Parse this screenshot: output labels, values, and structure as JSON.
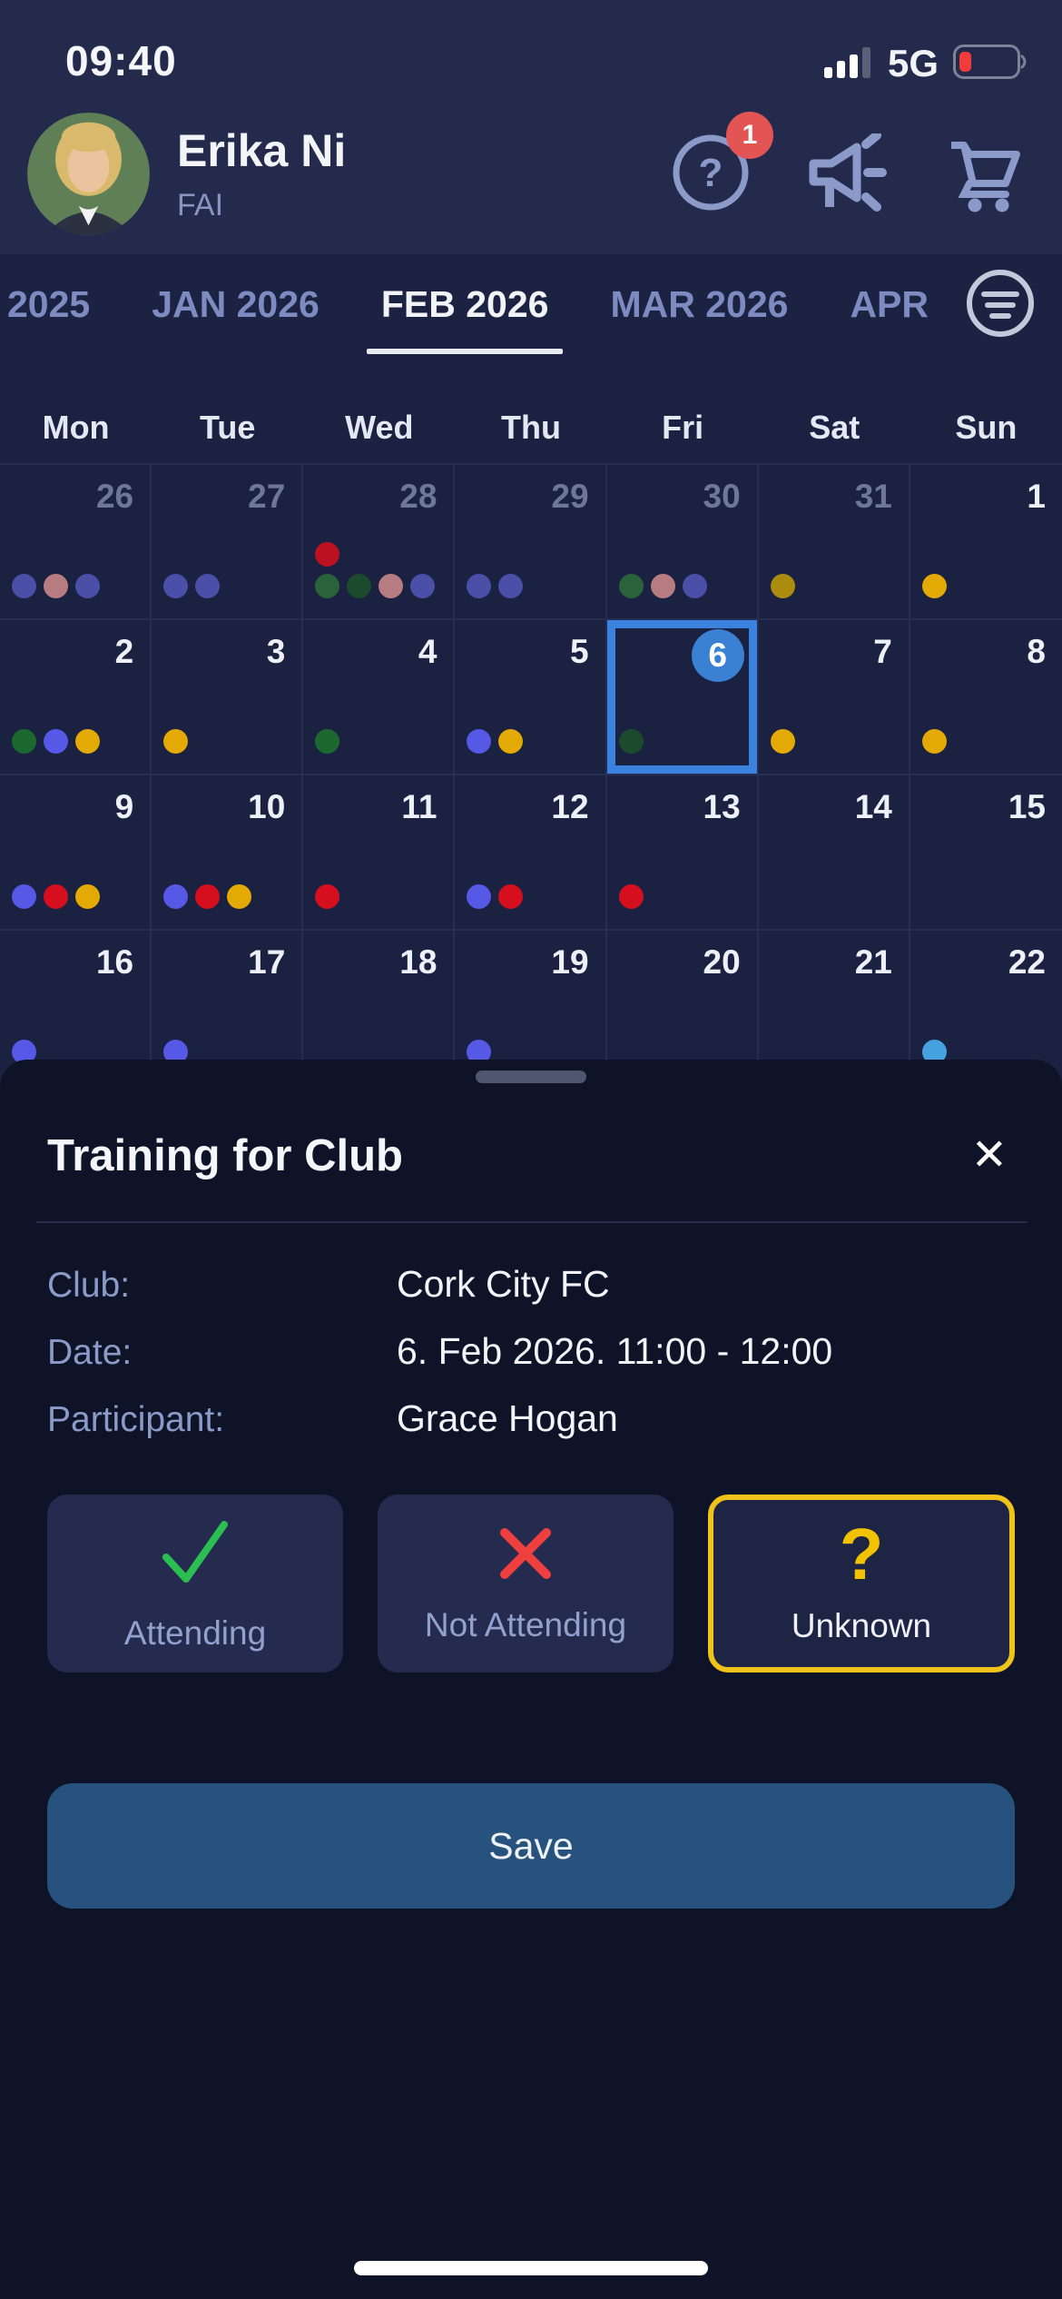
{
  "status_bar": {
    "time": "09:40",
    "network": "5G"
  },
  "header": {
    "name": "Erika Ni",
    "org": "FAI",
    "help_badge": "1"
  },
  "month_tabs": {
    "tabs": [
      {
        "label": "2025",
        "active": false
      },
      {
        "label": "JAN 2026",
        "active": false
      },
      {
        "label": "FEB 2026",
        "active": true
      },
      {
        "label": "MAR 2026",
        "active": false
      },
      {
        "label": "APR",
        "active": false
      }
    ]
  },
  "calendar": {
    "weekdays": [
      "Mon",
      "Tue",
      "Wed",
      "Thu",
      "Fri",
      "Sat",
      "Sun"
    ],
    "dot_colors": {
      "indigo_muted": "#4b4fa8",
      "rose": "#b77c82",
      "red_muted": "#bb1120",
      "red": "#d60f1e",
      "green": "#1c6930",
      "green_mid": "#2a633a",
      "green_dark": "#1c4a2c",
      "gold": "#e3a904",
      "gold_dark": "#ac8c0e",
      "violet": "#5658e6",
      "sky": "#45a1df"
    },
    "selection_color": "#3b82de",
    "weeks": [
      {
        "days": [
          {
            "num": "26",
            "muted": true,
            "dots": [
              "indigo_muted",
              "rose",
              "indigo_muted"
            ]
          },
          {
            "num": "27",
            "muted": true,
            "dots": [
              "indigo_muted",
              "indigo_muted"
            ]
          },
          {
            "num": "28",
            "muted": true,
            "dots_top": [
              "red_muted"
            ],
            "dots": [
              "green_mid",
              "green_dark",
              "rose",
              "indigo_muted"
            ]
          },
          {
            "num": "29",
            "muted": true,
            "dots": [
              "indigo_muted",
              "indigo_muted"
            ]
          },
          {
            "num": "30",
            "muted": true,
            "dots": [
              "green_mid",
              "rose",
              "indigo_muted"
            ]
          },
          {
            "num": "31",
            "muted": true,
            "dots": [
              "gold_dark"
            ]
          },
          {
            "num": "1",
            "muted": false,
            "dots": [
              "gold"
            ]
          }
        ]
      },
      {
        "days": [
          {
            "num": "2",
            "muted": false,
            "dots": [
              "green",
              "violet",
              "gold"
            ]
          },
          {
            "num": "3",
            "muted": false,
            "dots": [
              "gold"
            ]
          },
          {
            "num": "4",
            "muted": false,
            "dots": [
              "green"
            ]
          },
          {
            "num": "5",
            "muted": false,
            "dots": [
              "violet",
              "gold"
            ]
          },
          {
            "num": "6",
            "muted": false,
            "selected": true,
            "dots": [
              "green_dark"
            ]
          },
          {
            "num": "7",
            "muted": false,
            "dots": [
              "gold"
            ]
          },
          {
            "num": "8",
            "muted": false,
            "dots": [
              "gold"
            ]
          }
        ]
      },
      {
        "days": [
          {
            "num": "9",
            "muted": false,
            "dots": [
              "violet",
              "red",
              "gold"
            ]
          },
          {
            "num": "10",
            "muted": false,
            "dots": [
              "violet",
              "red",
              "gold"
            ]
          },
          {
            "num": "11",
            "muted": false,
            "dots": [
              "red"
            ]
          },
          {
            "num": "12",
            "muted": false,
            "dots": [
              "violet",
              "red"
            ]
          },
          {
            "num": "13",
            "muted": false,
            "dots": [
              "red"
            ]
          },
          {
            "num": "14",
            "muted": false,
            "dots": []
          },
          {
            "num": "15",
            "muted": false,
            "dots": []
          }
        ]
      },
      {
        "days": [
          {
            "num": "16",
            "muted": false,
            "dots": [
              "violet"
            ]
          },
          {
            "num": "17",
            "muted": false,
            "dots": [
              "violet"
            ]
          },
          {
            "num": "18",
            "muted": false,
            "dots": []
          },
          {
            "num": "19",
            "muted": false,
            "dots": [
              "violet"
            ]
          },
          {
            "num": "20",
            "muted": false,
            "dots": []
          },
          {
            "num": "21",
            "muted": false,
            "dots": []
          },
          {
            "num": "22",
            "muted": false,
            "dots": [
              "sky"
            ]
          }
        ]
      }
    ]
  },
  "modal": {
    "title": "Training for Club",
    "close_glyph": "✕",
    "fields": [
      {
        "label": "Club:",
        "value": "Cork City FC"
      },
      {
        "label": "Date:",
        "value": "6. Feb 2026. 11:00 - 12:00"
      },
      {
        "label": "Participant:",
        "value": "Grace Hogan"
      }
    ],
    "options": [
      {
        "id": "attending",
        "label": "Attending",
        "icon": "check",
        "selected": false
      },
      {
        "id": "not-attending",
        "label": "Not Attending",
        "icon": "cross",
        "selected": false
      },
      {
        "id": "unknown",
        "label": "Unknown",
        "icon": "question",
        "selected": true
      }
    ],
    "icon_colors": {
      "check": "#2abf50",
      "cross": "#ef4040",
      "question": "#f2c200"
    },
    "save_label": "Save"
  }
}
